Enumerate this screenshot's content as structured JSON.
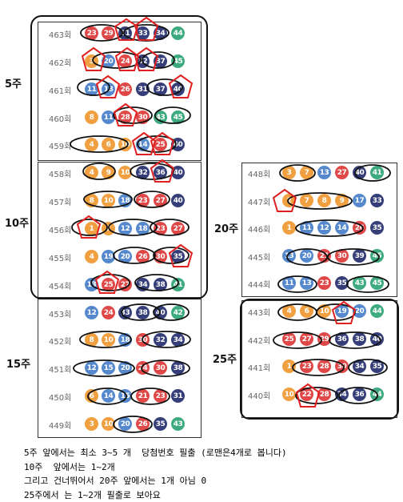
{
  "group_labels": {
    "g5": "5주",
    "g10": "10주",
    "g15": "15주",
    "g20": "20주",
    "g25": "25주"
  },
  "colors": {
    "orange": "#f0a040",
    "blue": "#5588cc",
    "red": "#e04848",
    "navy": "#353e78",
    "green": "#3daa80"
  },
  "left_rows": [
    {
      "label": "463회",
      "balls": [
        {
          "n": "23",
          "c": "r"
        },
        {
          "n": "29",
          "c": "r"
        },
        {
          "n": "31",
          "c": "n"
        },
        {
          "n": "33",
          "c": "n"
        },
        {
          "n": "34",
          "c": "n"
        },
        {
          "n": "44",
          "c": "g"
        }
      ]
    },
    {
      "label": "462회",
      "balls": [
        {
          "n": "3",
          "c": "o"
        },
        {
          "n": "20",
          "c": "b"
        },
        {
          "n": "24",
          "c": "r"
        },
        {
          "n": "32",
          "c": "n"
        },
        {
          "n": "37",
          "c": "n"
        },
        {
          "n": "45",
          "c": "g"
        }
      ]
    },
    {
      "label": "461회",
      "balls": [
        {
          "n": "11",
          "c": "b"
        },
        {
          "n": "18",
          "c": "b"
        },
        {
          "n": "26",
          "c": "r"
        },
        {
          "n": "31",
          "c": "n"
        },
        {
          "n": "37",
          "c": "n"
        },
        {
          "n": "40",
          "c": "n"
        }
      ]
    },
    {
      "label": "460회",
      "balls": [
        {
          "n": "8",
          "c": "o"
        },
        {
          "n": "11",
          "c": "b"
        },
        {
          "n": "28",
          "c": "r"
        },
        {
          "n": "30",
          "c": "r"
        },
        {
          "n": "43",
          "c": "g"
        },
        {
          "n": "45",
          "c": "g"
        }
      ]
    },
    {
      "label": "459회",
      "balls": [
        {
          "n": "4",
          "c": "o"
        },
        {
          "n": "6",
          "c": "o"
        },
        {
          "n": "10",
          "c": "o"
        },
        {
          "n": "14",
          "c": "b"
        },
        {
          "n": "25",
          "c": "r"
        },
        {
          "n": "40",
          "c": "n"
        }
      ]
    },
    {
      "label": "458회",
      "balls": [
        {
          "n": "4",
          "c": "o"
        },
        {
          "n": "9",
          "c": "o"
        },
        {
          "n": "10",
          "c": "o"
        },
        {
          "n": "32",
          "c": "n"
        },
        {
          "n": "36",
          "c": "n"
        },
        {
          "n": "40",
          "c": "n"
        }
      ]
    },
    {
      "label": "457회",
      "balls": [
        {
          "n": "8",
          "c": "o"
        },
        {
          "n": "10",
          "c": "o"
        },
        {
          "n": "18",
          "c": "b"
        },
        {
          "n": "23",
          "c": "r"
        },
        {
          "n": "27",
          "c": "r"
        },
        {
          "n": "40",
          "c": "n"
        }
      ]
    },
    {
      "label": "456회",
      "balls": [
        {
          "n": "1",
          "c": "o"
        },
        {
          "n": "7",
          "c": "o"
        },
        {
          "n": "12",
          "c": "b"
        },
        {
          "n": "18",
          "c": "b"
        },
        {
          "n": "23",
          "c": "r"
        },
        {
          "n": "27",
          "c": "r"
        }
      ]
    },
    {
      "label": "455회",
      "balls": [
        {
          "n": "4",
          "c": "o"
        },
        {
          "n": "19",
          "c": "b"
        },
        {
          "n": "20",
          "c": "b"
        },
        {
          "n": "26",
          "c": "r"
        },
        {
          "n": "30",
          "c": "r"
        },
        {
          "n": "35",
          "c": "n"
        }
      ]
    },
    {
      "label": "454회",
      "balls": [
        {
          "n": "13",
          "c": "b"
        },
        {
          "n": "25",
          "c": "r"
        },
        {
          "n": "27",
          "c": "r"
        },
        {
          "n": "34",
          "c": "n"
        },
        {
          "n": "38",
          "c": "n"
        },
        {
          "n": "41",
          "c": "g"
        }
      ]
    },
    {
      "label": "453회",
      "balls": [
        {
          "n": "12",
          "c": "b"
        },
        {
          "n": "24",
          "c": "r"
        },
        {
          "n": "33",
          "c": "n"
        },
        {
          "n": "38",
          "c": "n"
        },
        {
          "n": "40",
          "c": "n"
        },
        {
          "n": "42",
          "c": "g"
        }
      ]
    },
    {
      "label": "452회",
      "balls": [
        {
          "n": "8",
          "c": "o"
        },
        {
          "n": "10",
          "c": "o"
        },
        {
          "n": "18",
          "c": "b"
        },
        {
          "n": "30",
          "c": "r"
        },
        {
          "n": "32",
          "c": "n"
        },
        {
          "n": "34",
          "c": "n"
        }
      ]
    },
    {
      "label": "451회",
      "balls": [
        {
          "n": "12",
          "c": "b"
        },
        {
          "n": "15",
          "c": "b"
        },
        {
          "n": "20",
          "c": "b"
        },
        {
          "n": "24",
          "c": "r"
        },
        {
          "n": "30",
          "c": "r"
        },
        {
          "n": "38",
          "c": "n"
        }
      ]
    },
    {
      "label": "450회",
      "balls": [
        {
          "n": "6",
          "c": "o"
        },
        {
          "n": "14",
          "c": "b"
        },
        {
          "n": "15",
          "c": "b"
        },
        {
          "n": "21",
          "c": "r"
        },
        {
          "n": "23",
          "c": "r"
        },
        {
          "n": "31",
          "c": "n"
        }
      ]
    },
    {
      "label": "449회",
      "balls": [
        {
          "n": "3",
          "c": "o"
        },
        {
          "n": "10",
          "c": "o"
        },
        {
          "n": "20",
          "c": "b"
        },
        {
          "n": "26",
          "c": "r"
        },
        {
          "n": "35",
          "c": "n"
        },
        {
          "n": "43",
          "c": "g"
        }
      ]
    }
  ],
  "right_rows": [
    {
      "label": "448회",
      "balls": [
        {
          "n": "3",
          "c": "o"
        },
        {
          "n": "7",
          "c": "o"
        },
        {
          "n": "13",
          "c": "b"
        },
        {
          "n": "27",
          "c": "r"
        },
        {
          "n": "40",
          "c": "n"
        },
        {
          "n": "41",
          "c": "g"
        }
      ]
    },
    {
      "label": "447회",
      "balls": [
        {
          "n": "2",
          "c": "o"
        },
        {
          "n": "7",
          "c": "o"
        },
        {
          "n": "8",
          "c": "o"
        },
        {
          "n": "9",
          "c": "o"
        },
        {
          "n": "17",
          "c": "b"
        },
        {
          "n": "33",
          "c": "n"
        }
      ]
    },
    {
      "label": "446회",
      "balls": [
        {
          "n": "1",
          "c": "o"
        },
        {
          "n": "11",
          "c": "b"
        },
        {
          "n": "12",
          "c": "b"
        },
        {
          "n": "14",
          "c": "b"
        },
        {
          "n": "26",
          "c": "r"
        },
        {
          "n": "35",
          "c": "n"
        }
      ]
    },
    {
      "label": "445회",
      "balls": [
        {
          "n": "13",
          "c": "b"
        },
        {
          "n": "20",
          "c": "b"
        },
        {
          "n": "21",
          "c": "r"
        },
        {
          "n": "30",
          "c": "r"
        },
        {
          "n": "39",
          "c": "n"
        },
        {
          "n": "45",
          "c": "g"
        }
      ]
    },
    {
      "label": "444회",
      "balls": [
        {
          "n": "11",
          "c": "b"
        },
        {
          "n": "13",
          "c": "b"
        },
        {
          "n": "23",
          "c": "r"
        },
        {
          "n": "35",
          "c": "n"
        },
        {
          "n": "43",
          "c": "g"
        },
        {
          "n": "45",
          "c": "g"
        }
      ]
    },
    {
      "label": "443회",
      "balls": [
        {
          "n": "4",
          "c": "o"
        },
        {
          "n": "6",
          "c": "o"
        },
        {
          "n": "10",
          "c": "o"
        },
        {
          "n": "19",
          "c": "b"
        },
        {
          "n": "20",
          "c": "b"
        },
        {
          "n": "44",
          "c": "g"
        }
      ]
    },
    {
      "label": "442회",
      "balls": [
        {
          "n": "25",
          "c": "r"
        },
        {
          "n": "27",
          "c": "r"
        },
        {
          "n": "29",
          "c": "r"
        },
        {
          "n": "36",
          "c": "n"
        },
        {
          "n": "38",
          "c": "n"
        },
        {
          "n": "40",
          "c": "n"
        }
      ]
    },
    {
      "label": "441회",
      "balls": [
        {
          "n": "1",
          "c": "o"
        },
        {
          "n": "23",
          "c": "r"
        },
        {
          "n": "28",
          "c": "r"
        },
        {
          "n": "30",
          "c": "r"
        },
        {
          "n": "34",
          "c": "n"
        },
        {
          "n": "35",
          "c": "n"
        }
      ]
    },
    {
      "label": "440회",
      "balls": [
        {
          "n": "10",
          "c": "o"
        },
        {
          "n": "22",
          "c": "r"
        },
        {
          "n": "28",
          "c": "r"
        },
        {
          "n": "34",
          "c": "n"
        },
        {
          "n": "36",
          "c": "n"
        },
        {
          "n": "44",
          "c": "g"
        }
      ]
    }
  ],
  "notes": [
    "5주 앞에서는 최소 3~5 개  당첨번호 필출 (로맨은4개로 봅니다)",
    "10주  앞에서는 1~2개",
    "그리고 건너뛰어서 20주 앞에서는 1개 아님 0",
    "25주에서 는 1~2개 필출로 보아요"
  ]
}
